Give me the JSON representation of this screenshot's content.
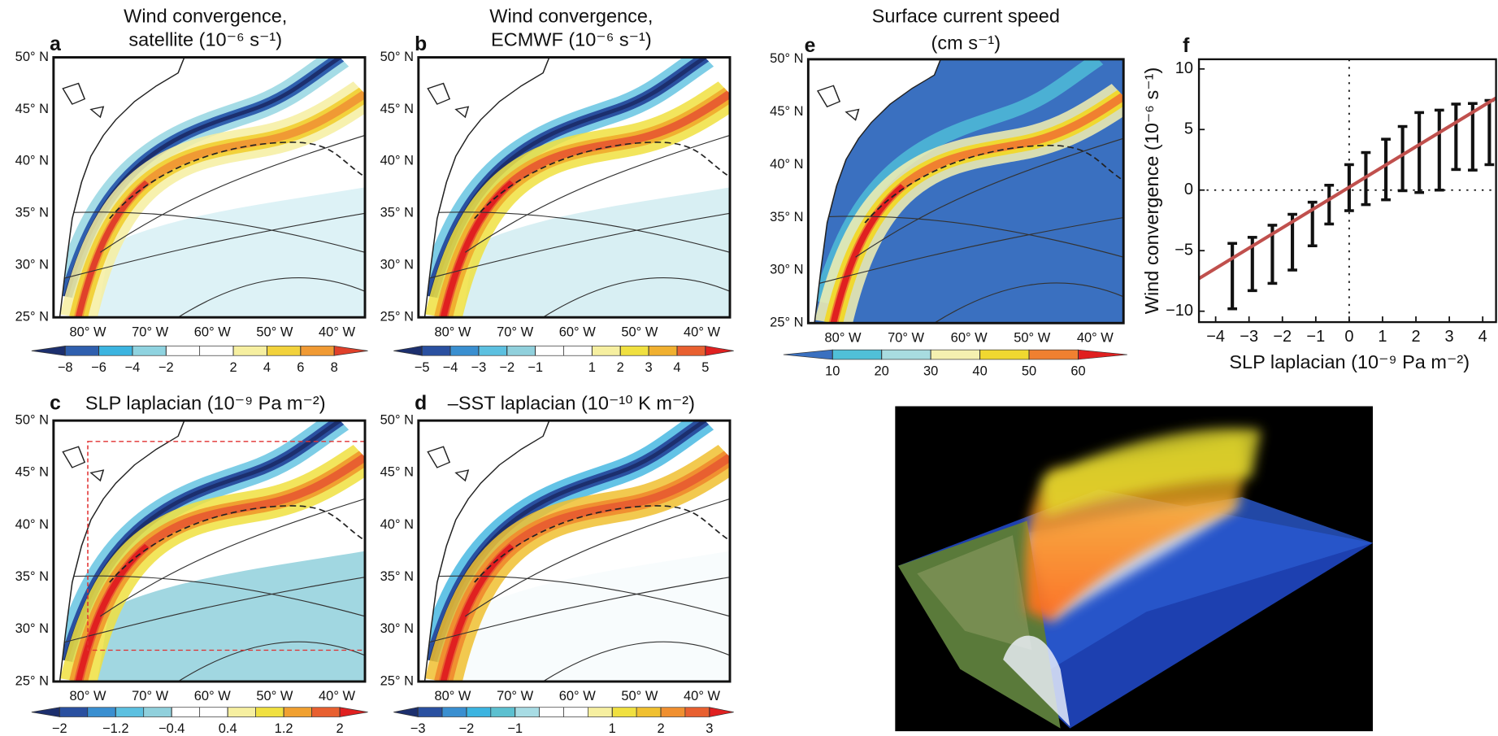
{
  "maps": [
    {
      "letter": "a",
      "title": [
        "Wind convergence,",
        "satellite (10⁻⁶ s⁻¹)"
      ],
      "yticks": [
        "50° N",
        "45° N",
        "40° N",
        "35° N",
        "30° N",
        "25° N"
      ],
      "xticks": [
        "80° W",
        "70° W",
        "60° W",
        "50° W",
        "40° W"
      ],
      "colorbar": {
        "clim": [
          -10,
          10
        ],
        "ticks": [
          {
            "value": -8,
            "label": "−8"
          },
          {
            "value": -6,
            "label": "−6"
          },
          {
            "value": -4,
            "label": "−4"
          },
          {
            "value": -2,
            "label": "−2"
          },
          2,
          4,
          6,
          8
        ],
        "colors": [
          "#1c2f6e",
          "#2f5fae",
          "#3cb4e0",
          "#8fd3e0",
          "#ffffff",
          "#ffffff",
          "#f6efa0",
          "#f2d23c",
          "#f09a34",
          "#e0402a"
        ]
      }
    },
    {
      "letter": "b",
      "title": [
        "Wind convergence,",
        "ECMWF (10⁻⁶ s⁻¹)"
      ],
      "yticks": [
        "50° N",
        "45° N",
        "40° N",
        "35° N",
        "30° N",
        "25° N"
      ],
      "xticks": [
        "80° W",
        "70° W",
        "60° W",
        "50° W",
        "40° W"
      ],
      "colorbar": {
        "clim": [
          -6,
          6
        ],
        "ticks": [
          {
            "value": -5,
            "label": "−5"
          },
          {
            "value": -4,
            "label": "−4"
          },
          {
            "value": -3,
            "label": "−3"
          },
          {
            "value": -2,
            "label": "−2"
          },
          {
            "value": -1,
            "label": "−1"
          },
          1,
          2,
          3,
          4,
          5
        ],
        "colors": [
          "#1c2f6e",
          "#2a50a0",
          "#3a8fd0",
          "#5cc0e0",
          "#90d0dc",
          "#ffffff",
          "#ffffff",
          "#f6efa0",
          "#f0e040",
          "#f0b030",
          "#e86030",
          "#e02020"
        ]
      }
    },
    {
      "letter": "c",
      "title": [
        "SLP laplacian (10⁻⁹ Pa m⁻²)"
      ],
      "yticks": [
        "50° N",
        "45° N",
        "40° N",
        "35° N",
        "30° N",
        "25° N"
      ],
      "xticks": [
        "80° W",
        "70° W",
        "60° W",
        "50° W",
        "40° W"
      ],
      "colorbar": {
        "clim": [
          -2.4,
          2.4
        ],
        "ticks": [
          {
            "value": -2,
            "label": "−2"
          },
          {
            "value": -1.2,
            "label": "−1.2"
          },
          {
            "value": -0.4,
            "label": "−0.4"
          },
          0.4,
          1.2,
          2
        ],
        "colors": [
          "#1c2f6e",
          "#2a50a0",
          "#3a8fd0",
          "#5cc0e0",
          "#90d0dc",
          "#ffffff",
          "#ffffff",
          "#f6efa0",
          "#f0e040",
          "#f0a030",
          "#e86030",
          "#e02020"
        ]
      }
    },
    {
      "letter": "d",
      "title": [
        "–SST laplacian (10⁻¹⁰ K m⁻²)"
      ],
      "yticks": [
        "50° N",
        "45° N",
        "40° N",
        "35° N",
        "30° N",
        "25° N"
      ],
      "xticks": [
        "80° W",
        "70° W",
        "60° W",
        "50° W",
        "40° W"
      ],
      "colorbar": {
        "clim": [
          -3.5,
          3.5
        ],
        "ticks": [
          {
            "value": -3,
            "label": "−3"
          },
          {
            "value": -2,
            "label": "−2"
          },
          {
            "value": -1,
            "label": "−1"
          },
          1,
          2,
          3
        ],
        "colors": [
          "#1c2f6e",
          "#2a50a0",
          "#3a8fd0",
          "#3cb4e0",
          "#5cc0d0",
          "#a8dce4",
          "#ffffff",
          "#ffffff",
          "#f6efa0",
          "#f0e040",
          "#f0c030",
          "#f09030",
          "#e86030",
          "#e02020"
        ]
      }
    },
    {
      "letter": "e",
      "title": [
        "Surface current speed",
        "(cm s⁻¹)"
      ],
      "yticks": [
        "50° N",
        "45° N",
        "40° N",
        "35° N",
        "30° N",
        "25° N"
      ],
      "xticks": [
        "80° W",
        "70° W",
        "60° W",
        "50° W",
        "40° W"
      ],
      "colorbar": {
        "clim": [
          0,
          70
        ],
        "ticks": [
          10,
          20,
          30,
          40,
          50,
          60
        ],
        "colors": [
          "#3a70c0",
          "#50c0d8",
          "#a8dce0",
          "#f5f0b0",
          "#f0d830",
          "#f08030",
          "#e02020"
        ]
      }
    }
  ],
  "chart_data": {
    "type": "errorbar",
    "letter": "f",
    "xlabel": "SLP laplacian (10⁻⁹ Pa m⁻²)",
    "ylabel": "Wind convergence (10⁻⁶ s⁻¹)",
    "x": [
      -3.5,
      -2.9,
      -2.3,
      -1.7,
      -1.1,
      -0.6,
      0,
      0.5,
      1.1,
      1.6,
      2.1,
      2.7,
      3.2,
      3.7,
      4.2
    ],
    "values": [
      -7.1,
      -6.1,
      -5.3,
      -4.3,
      -2.8,
      -1.2,
      0.2,
      0.95,
      1.7,
      2.6,
      3.1,
      3.3,
      4.4,
      4.4,
      4.75
    ],
    "errors": [
      2.7,
      2.2,
      2.4,
      2.3,
      1.8,
      1.6,
      1.9,
      2.15,
      2.5,
      2.65,
      3.3,
      3.3,
      2.7,
      2.75,
      2.65
    ],
    "color": "#111111",
    "fit": {
      "x": [
        -4.5,
        4.4
      ],
      "values": [
        -7.3,
        7.6
      ],
      "color": "#c0504d"
    },
    "xlim": [
      -4.5,
      4.4
    ],
    "ylim": [
      -10.9,
      10.8
    ],
    "xticks": [
      {
        "value": -4,
        "label": "−4"
      },
      {
        "value": -3,
        "label": "−3"
      },
      {
        "value": -2,
        "label": "−2"
      },
      {
        "value": -1,
        "label": "−1"
      },
      0,
      1,
      2,
      3,
      4
    ],
    "yticks": [
      {
        "value": -10,
        "label": "−10"
      },
      {
        "value": -5,
        "label": "−5"
      },
      0,
      5,
      10
    ]
  }
}
